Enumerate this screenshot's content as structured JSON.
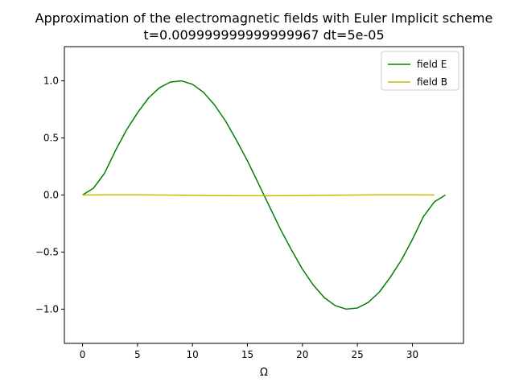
{
  "chart_data": {
    "type": "line",
    "title": "Approximation of the electromagnetic fields with Euler Implicit scheme",
    "subtitle": "t=0.009999999999999967 dt=5e-05",
    "xlabel": "Ω",
    "ylabel": "",
    "xlim": [
      -1.65,
      34.65
    ],
    "ylim": [
      -1.3,
      1.3
    ],
    "xticks": [
      0,
      5,
      10,
      15,
      20,
      25,
      30
    ],
    "yticks": [
      -1.0,
      -0.5,
      0.0,
      0.5,
      1.0
    ],
    "xtick_labels": [
      "0",
      "5",
      "10",
      "15",
      "20",
      "25",
      "30"
    ],
    "ytick_labels": [
      "−1.0",
      "−0.5",
      "0.0",
      "0.5",
      "1.0"
    ],
    "grid": false,
    "legend_position": "upper right",
    "series": [
      {
        "name": "field E",
        "color": "#008000",
        "x": [
          0,
          1,
          2,
          3,
          4,
          5,
          6,
          7,
          8,
          9,
          10,
          11,
          12,
          13,
          14,
          15,
          16,
          17,
          18,
          19,
          20,
          21,
          22,
          23,
          24,
          25,
          26,
          27,
          28,
          29,
          30,
          31,
          32,
          33
        ],
        "values": [
          0.0,
          0.06,
          0.19,
          0.39,
          0.57,
          0.72,
          0.85,
          0.94,
          0.99,
          1.0,
          0.97,
          0.9,
          0.79,
          0.65,
          0.48,
          0.3,
          0.1,
          -0.1,
          -0.3,
          -0.48,
          -0.65,
          -0.79,
          -0.9,
          -0.97,
          -1.0,
          -0.99,
          -0.94,
          -0.85,
          -0.72,
          -0.57,
          -0.39,
          -0.19,
          -0.06,
          0.0
        ]
      },
      {
        "name": "field B",
        "color": "#bfbf00",
        "x": [
          0,
          1,
          2,
          3,
          4,
          5,
          6,
          7,
          8,
          9,
          10,
          11,
          12,
          13,
          14,
          15,
          16,
          17,
          18,
          19,
          20,
          21,
          22,
          23,
          24,
          25,
          26,
          27,
          28,
          29,
          30,
          31,
          32
        ],
        "values": [
          0.0,
          0.001,
          0.002,
          0.002,
          0.002,
          0.002,
          0.001,
          0.0,
          -0.001,
          -0.002,
          -0.003,
          -0.004,
          -0.005,
          -0.005,
          -0.006,
          -0.006,
          -0.006,
          -0.006,
          -0.006,
          -0.005,
          -0.005,
          -0.004,
          -0.003,
          -0.002,
          -0.001,
          0.0,
          0.001,
          0.002,
          0.002,
          0.002,
          0.002,
          0.001,
          0.0
        ]
      }
    ]
  }
}
